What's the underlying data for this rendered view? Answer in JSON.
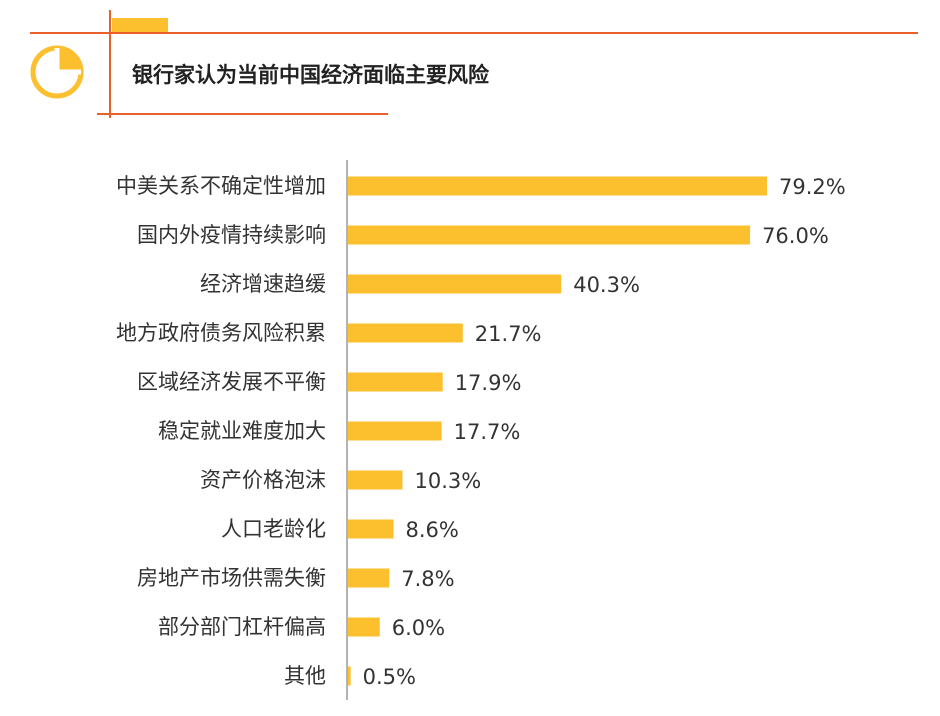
{
  "chart_data": {
    "type": "bar",
    "orientation": "horizontal",
    "title": "银行家认为当前中国经济面临主要风险",
    "categories": [
      "中美关系不确定性增加",
      "国内外疫情持续影响",
      "经济增速趋缓",
      "地方政府债务风险积累",
      "区域经济发展不平衡",
      "稳定就业难度加大",
      "资产价格泡沫",
      "人口老龄化",
      "房地产市场供需失衡",
      "部分部门杠杆偏高",
      "其他"
    ],
    "values": [
      79.2,
      76.0,
      40.3,
      21.7,
      17.9,
      17.7,
      10.3,
      8.6,
      7.8,
      6.0,
      0.5
    ],
    "value_labels": [
      "79.2%",
      "76.0%",
      "40.3%",
      "21.7%",
      "17.9%",
      "17.7%",
      "10.3%",
      "8.6%",
      "7.8%",
      "6.0%",
      "0.5%"
    ],
    "unit": "%",
    "xlim": [
      0,
      100
    ],
    "xlabel": "",
    "ylabel": "",
    "grid": false,
    "legend": "none"
  },
  "colors": {
    "bar": "#FCBF2E",
    "accent_line": "#E8602C",
    "icon": "#FCBF2E",
    "axis": "#999999"
  },
  "icons": {
    "header": "pie-chart-icon"
  }
}
